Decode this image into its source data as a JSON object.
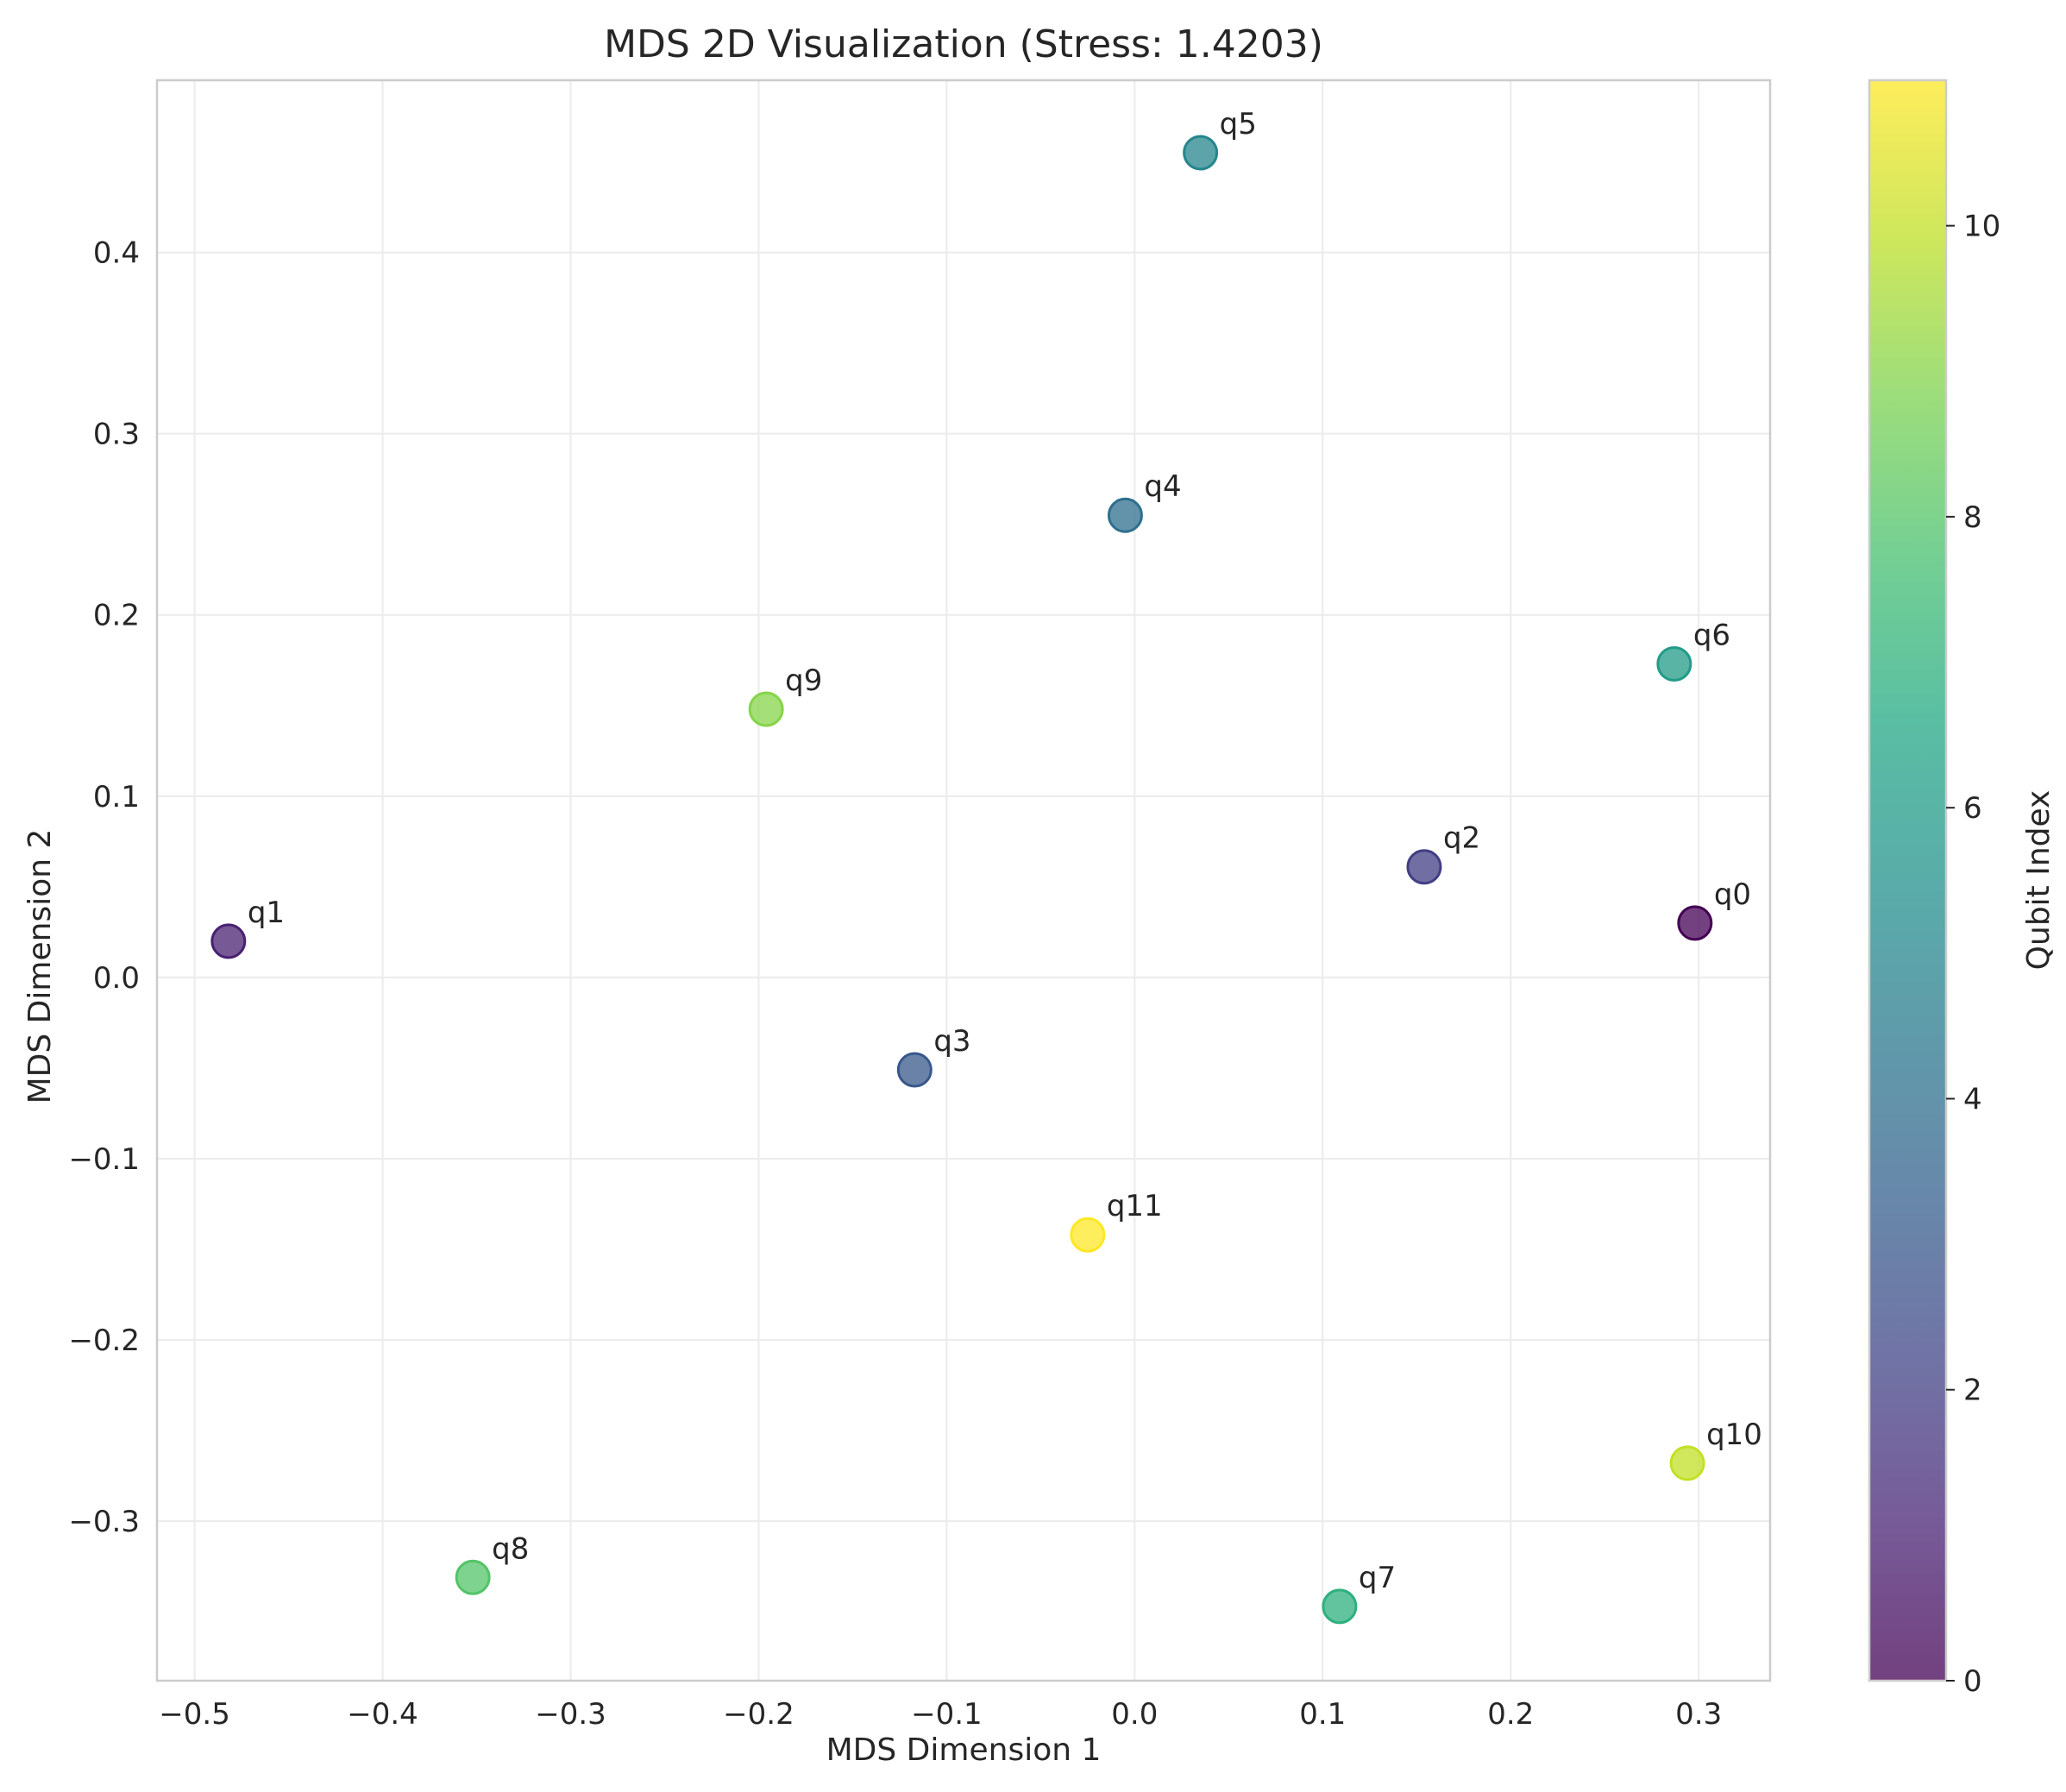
{
  "chart_data": {
    "type": "scatter",
    "title": "MDS 2D Visualization (Stress: 1.4203)",
    "xlabel": "MDS Dimension 1",
    "ylabel": "MDS Dimension 2",
    "xlim": [
      -0.52,
      0.338
    ],
    "ylim": [
      -0.388,
      0.495
    ],
    "xticks": [
      -0.5,
      -0.4,
      -0.3,
      -0.2,
      -0.1,
      0.0,
      0.1,
      0.2,
      0.3
    ],
    "yticks": [
      -0.3,
      -0.2,
      -0.1,
      0.0,
      0.1,
      0.2,
      0.3,
      0.4
    ],
    "xtick_labels": [
      "−0.5",
      "−0.4",
      "−0.3",
      "−0.2",
      "−0.1",
      "0.0",
      "0.1",
      "0.2",
      "0.3"
    ],
    "ytick_labels": [
      "−0.3",
      "−0.2",
      "−0.1",
      "0.0",
      "0.1",
      "0.2",
      "0.3",
      "0.4"
    ],
    "grid": true,
    "points": [
      {
        "label": "q0",
        "x": 0.298,
        "y": 0.03,
        "index": 0
      },
      {
        "label": "q1",
        "x": -0.482,
        "y": 0.02,
        "index": 1
      },
      {
        "label": "q2",
        "x": 0.154,
        "y": 0.061,
        "index": 2
      },
      {
        "label": "q3",
        "x": -0.117,
        "y": -0.051,
        "index": 3
      },
      {
        "label": "q4",
        "x": -0.005,
        "y": 0.255,
        "index": 4
      },
      {
        "label": "q5",
        "x": 0.035,
        "y": 0.455,
        "index": 5
      },
      {
        "label": "q6",
        "x": 0.287,
        "y": 0.173,
        "index": 6
      },
      {
        "label": "q7",
        "x": 0.109,
        "y": -0.347,
        "index": 7
      },
      {
        "label": "q8",
        "x": -0.352,
        "y": -0.331,
        "index": 8
      },
      {
        "label": "q9",
        "x": -0.196,
        "y": 0.148,
        "index": 9
      },
      {
        "label": "q10",
        "x": 0.294,
        "y": -0.268,
        "index": 10
      },
      {
        "label": "q11",
        "x": -0.025,
        "y": -0.142,
        "index": 11
      }
    ],
    "colorbar": {
      "label": "Qubit Index",
      "min": 0,
      "max": 11,
      "ticks": [
        0,
        2,
        4,
        6,
        8,
        10
      ],
      "colormap": "viridis"
    }
  }
}
